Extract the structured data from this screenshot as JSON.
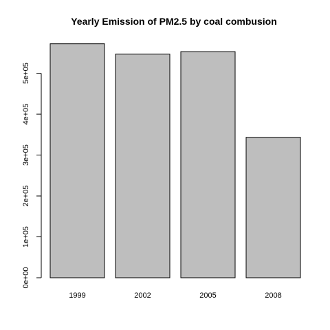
{
  "chart_data": {
    "type": "bar",
    "title": "Yearly Emission of PM2.5  by coal combusion",
    "xlabel": "",
    "ylabel": "",
    "categories": [
      "1999",
      "2002",
      "2005",
      "2008"
    ],
    "values": [
      572126,
      546789,
      552881,
      343432
    ],
    "ylim": [
      0,
      580000
    ],
    "y_ticks": [
      0,
      100000,
      200000,
      300000,
      400000,
      500000
    ],
    "y_tick_labels": [
      "0e+00",
      "1e+05",
      "2e+05",
      "3e+05",
      "4e+05",
      "5e+05"
    ],
    "bar_color": "#bebebe",
    "bar_border_color": "#000000",
    "grid": false,
    "legend": "none"
  }
}
